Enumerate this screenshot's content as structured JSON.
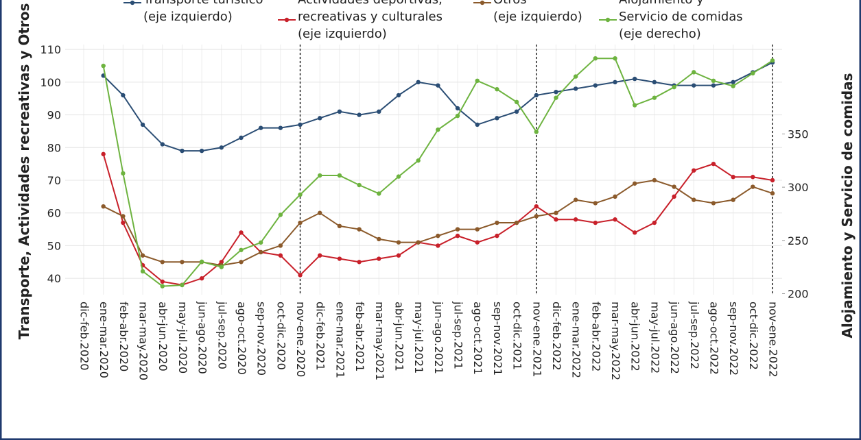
{
  "chart_data": {
    "type": "line",
    "y_label": "Transporte, Actividades recreativas y Otros",
    "y2_label": "Alojamiento y Servicio de comidas",
    "categories": [
      "dic-feb.2020",
      "ene-mar.2020",
      "feb-abr.2020",
      "mar-may.2020",
      "abr-jun.2020",
      "may-jul.2020",
      "jun-ago.2020",
      "jul-sep.2020",
      "ago-oct.2020",
      "sep-nov.2020",
      "oct-dic.2020",
      "nov-ene.2020",
      "dic-feb.2021",
      "ene-mar.2021",
      "feb-abr.2021",
      "mar-may.2021",
      "abr-jun.2021",
      "may-jul.2021",
      "jun-ago.2021",
      "jul-sep.2021",
      "ago-oct.2021",
      "sep-nov.2021",
      "oct-dic.2021",
      "nov-ene.2021",
      "dic-feb.2022",
      "ene-mar.2022",
      "feb-abr.2022",
      "mar-may.2022",
      "abr-jun.2022",
      "may-jul.2022",
      "jun-ago.2022",
      "jul-sep.2022",
      "ago-oct.2022",
      "sep-nov.2022",
      "oct-dic.2022",
      "nov-ene.2022"
    ],
    "series": [
      {
        "name": "Transporte turístico\n(eje izquierdo)",
        "color": "#2a4d74",
        "axis": "y",
        "values": [
          null,
          102,
          96,
          87,
          81,
          79,
          79,
          80,
          83,
          86,
          86,
          87,
          89,
          91,
          90,
          91,
          96,
          100,
          99,
          92,
          87,
          89,
          91,
          96,
          97,
          98,
          99,
          100,
          101,
          100,
          99,
          99,
          99,
          100,
          103,
          106
        ]
      },
      {
        "name": "Actividades deportivas,\nrecreativas y culturales\n(eje izquierdo)",
        "color": "#c8202a",
        "axis": "y",
        "values": [
          null,
          78,
          57,
          44,
          39,
          38,
          40,
          45,
          54,
          48,
          47,
          41,
          47,
          46,
          45,
          46,
          47,
          51,
          50,
          53,
          51,
          53,
          57,
          62,
          58,
          58,
          57,
          58,
          54,
          57,
          65,
          73,
          75,
          71,
          71,
          70
        ]
      },
      {
        "name": "Otros\n(eje izquierdo)",
        "color": "#8b5a2b",
        "axis": "y",
        "values": [
          null,
          62,
          59,
          47,
          45,
          45,
          45,
          44,
          45,
          48,
          50,
          57,
          60,
          56,
          55,
          52,
          51,
          51,
          53,
          55,
          55,
          57,
          57,
          59,
          60,
          64,
          63,
          65,
          69,
          70,
          68,
          64,
          63,
          64,
          68,
          66
        ]
      },
      {
        "name": "Alojamiento y\nServicio de comidas\n(eje derecho)",
        "color": "#6db33f",
        "axis": "y2",
        "values": [
          null,
          414,
          313,
          221,
          207,
          208,
          230,
          225,
          241,
          248,
          274,
          293,
          311,
          311,
          302,
          294,
          310,
          325,
          354,
          367,
          400,
          392,
          380,
          352,
          384,
          404,
          421,
          421,
          377,
          384,
          394,
          408,
          400,
          395,
          407,
          419
        ]
      }
    ],
    "ylim": [
      35,
      111.5
    ],
    "yticks": [
      40,
      50,
      60,
      70,
      80,
      90,
      100,
      110
    ],
    "y2lim": [
      199,
      434
    ],
    "y2ticks": [
      200,
      250,
      300,
      350
    ],
    "grid": true,
    "vlines": [
      "nov-ene.2020",
      "nov-ene.2021",
      "nov-ene.2022"
    ]
  }
}
